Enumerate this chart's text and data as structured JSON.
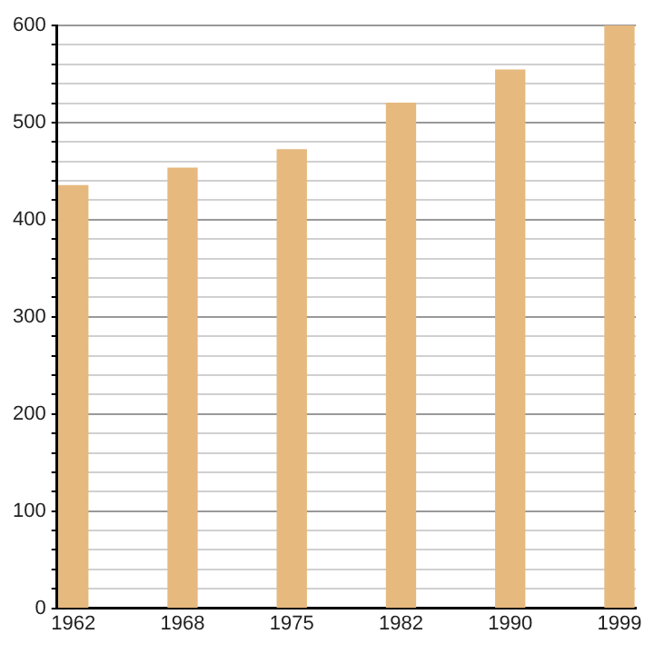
{
  "chart_data": {
    "type": "bar",
    "categories": [
      "1962",
      "1968",
      "1975",
      "1982",
      "1990",
      "1999"
    ],
    "values": [
      435,
      453,
      472,
      520,
      554,
      600
    ],
    "color": "#e6b97e",
    "ylim": [
      0,
      600
    ],
    "yticks": [
      0,
      {
        "value": 20,
        "label": null
      },
      {
        "value": 40,
        "label": null
      },
      {
        "value": 60,
        "label": null
      },
      {
        "value": 80,
        "label": null
      },
      100,
      {
        "value": 120,
        "label": null
      },
      {
        "value": 140,
        "label": null
      },
      {
        "value": 160,
        "label": null
      },
      {
        "value": 180,
        "label": null
      },
      200,
      {
        "value": 220,
        "label": null
      },
      {
        "value": 240,
        "label": null
      },
      {
        "value": 260,
        "label": null
      },
      {
        "value": 280,
        "label": null
      },
      300,
      {
        "value": 320,
        "label": null
      },
      {
        "value": 340,
        "label": null
      },
      {
        "value": 360,
        "label": null
      },
      {
        "value": 380,
        "label": null
      },
      400,
      {
        "value": 420,
        "label": null
      },
      {
        "value": 440,
        "label": null
      },
      {
        "value": 460,
        "label": null
      },
      {
        "value": 480,
        "label": null
      },
      500,
      {
        "value": 520,
        "label": null
      },
      {
        "value": 540,
        "label": null
      },
      {
        "value": 560,
        "label": null
      },
      {
        "value": 580,
        "label": null
      },
      600
    ],
    "grid": "y",
    "legend": false
  }
}
